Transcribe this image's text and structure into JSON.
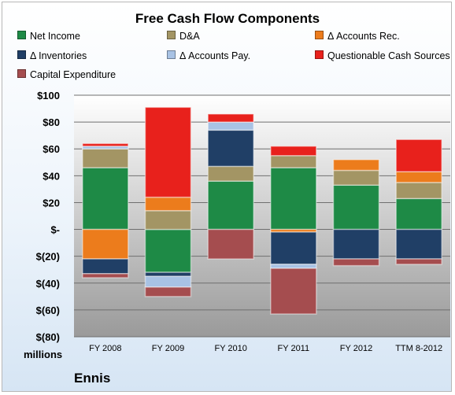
{
  "chart_data": {
    "type": "bar",
    "stacked": true,
    "title": "Free Cash Flow Components",
    "units": "millions",
    "categories": [
      "FY 2008",
      "FY 2009",
      "FY 2010",
      "FY 2011",
      "FY 2012",
      "TTM 8-2012"
    ],
    "ylim": [
      -80,
      100
    ],
    "yticks": [
      100,
      80,
      60,
      40,
      20,
      0,
      -20,
      -40,
      -60,
      -80
    ],
    "ytick_labels": [
      "$100",
      "$80",
      "$60",
      "$40",
      "$20",
      "$-",
      "$(20)",
      "$(40)",
      "$(60)",
      "$(80)"
    ],
    "grid": true,
    "legend_position": "top",
    "series": [
      {
        "name": "Net Income",
        "color": "#1e8a46",
        "values": [
          46,
          -32,
          36,
          46,
          33,
          23
        ]
      },
      {
        "name": "D&A",
        "color": "#a39564",
        "values": [
          14,
          14,
          11,
          9,
          11,
          12
        ]
      },
      {
        "name": "Δ Accounts Rec.",
        "color": "#ec7c1c",
        "values": [
          -22,
          10,
          0,
          -2,
          8,
          8
        ]
      },
      {
        "name": "Δ Inventories",
        "color": "#203f66",
        "values": [
          -11,
          -3,
          27,
          -24,
          -22,
          -22
        ]
      },
      {
        "name": "Δ Accounts Pay.",
        "color": "#a8c2e4",
        "values": [
          2,
          -8,
          6,
          -3,
          0,
          0
        ]
      },
      {
        "name": "Questionable Cash Sources",
        "color": "#e8211c",
        "values": [
          2,
          67,
          6,
          7,
          0,
          24
        ]
      },
      {
        "name": "Capital Expenditure",
        "color": "#a54d4f",
        "values": [
          -3,
          -7,
          -22,
          -34,
          -5,
          -4
        ]
      }
    ]
  },
  "company": "Ennis"
}
